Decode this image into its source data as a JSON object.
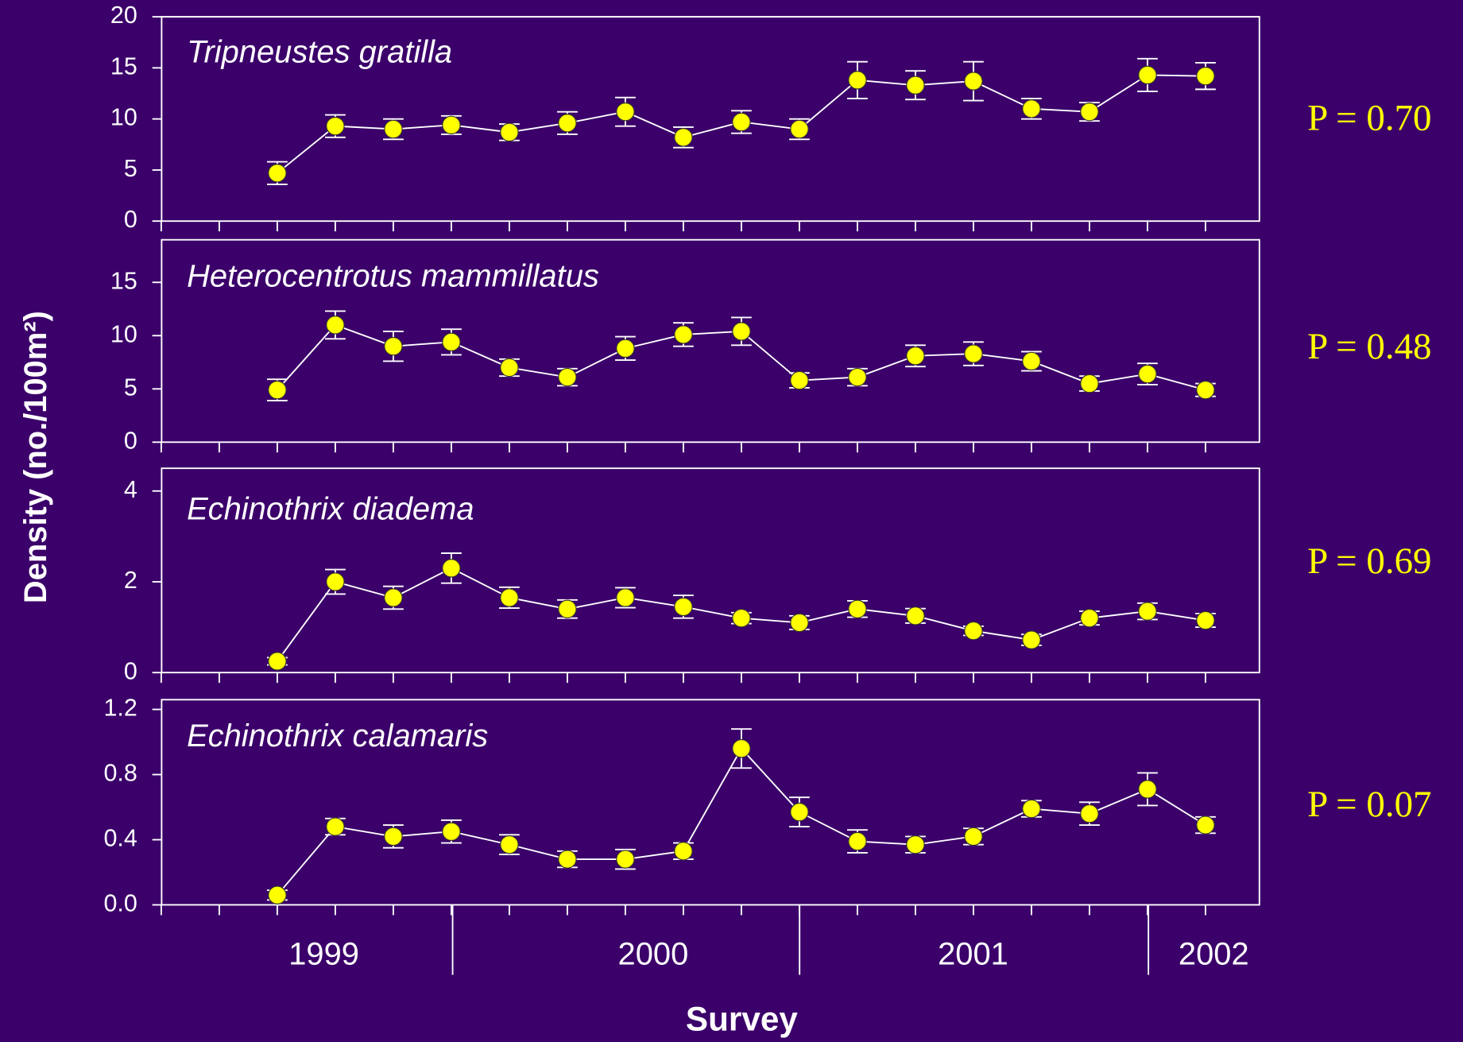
{
  "ylabel": "Density (no./100m²)",
  "xlabel": "Survey",
  "x_group_labels": [
    "1999",
    "2000",
    "2001",
    "2002"
  ],
  "chart_data": [
    {
      "type": "line",
      "title": "Tripneustes gratilla",
      "annotation": "P = 0.70",
      "color": "#ffff00",
      "values": [
        4.7,
        9.3,
        9.0,
        9.4,
        8.7,
        9.6,
        10.7,
        8.2,
        9.7,
        9.0,
        13.8,
        13.3,
        13.7,
        11.0,
        10.7,
        14.3,
        14.2
      ],
      "errors": [
        1.1,
        1.1,
        1.0,
        0.9,
        0.8,
        1.1,
        1.4,
        1.0,
        1.1,
        1.0,
        1.8,
        1.4,
        1.9,
        1.0,
        0.9,
        1.6,
        1.3
      ],
      "ylim": [
        0,
        20
      ],
      "yticks": [
        0,
        5,
        10,
        15,
        20
      ]
    },
    {
      "type": "line",
      "title": "Heterocentrotus mammillatus",
      "annotation": "P = 0.48",
      "color": "#ffff00",
      "values": [
        4.9,
        11.0,
        9.0,
        9.4,
        7.0,
        6.1,
        8.8,
        10.1,
        10.4,
        5.8,
        6.1,
        8.1,
        8.3,
        7.6,
        5.5,
        6.4,
        4.9
      ],
      "errors": [
        1.0,
        1.3,
        1.4,
        1.2,
        0.8,
        0.8,
        1.1,
        1.1,
        1.3,
        0.7,
        0.8,
        1.0,
        1.1,
        0.9,
        0.7,
        1.0,
        0.6
      ],
      "ylim": [
        0,
        19
      ],
      "yticks": [
        0,
        5,
        10,
        15
      ]
    },
    {
      "type": "line",
      "title": "Echinothrix diadema",
      "annotation": "P = 0.69",
      "color": "#ffff00",
      "values": [
        0.25,
        2.0,
        1.65,
        2.3,
        1.65,
        1.4,
        1.65,
        1.45,
        1.2,
        1.1,
        1.4,
        1.25,
        0.92,
        0.72,
        1.2,
        1.35,
        1.15
      ],
      "errors": [
        0.08,
        0.27,
        0.25,
        0.33,
        0.23,
        0.2,
        0.22,
        0.25,
        0.12,
        0.15,
        0.18,
        0.16,
        0.1,
        0.12,
        0.15,
        0.18,
        0.15
      ],
      "ylim": [
        0,
        4.5
      ],
      "yticks": [
        0,
        2,
        4
      ]
    },
    {
      "type": "line",
      "title": "Echinothrix calamaris",
      "annotation": "P = 0.07",
      "color": "#ffff00",
      "values": [
        0.06,
        0.48,
        0.42,
        0.45,
        0.37,
        0.28,
        0.28,
        0.33,
        0.96,
        0.57,
        0.39,
        0.37,
        0.42,
        0.59,
        0.56,
        0.71,
        0.49
      ],
      "errors": [
        0.03,
        0.05,
        0.07,
        0.07,
        0.06,
        0.05,
        0.06,
        0.05,
        0.12,
        0.09,
        0.07,
        0.05,
        0.05,
        0.05,
        0.07,
        0.1,
        0.05
      ],
      "ylim": [
        0,
        1.26
      ],
      "yticks": [
        {
          "value": 0,
          "label": "0.0"
        },
        {
          "value": 0.4,
          "label": "0.4"
        },
        {
          "value": 0.8,
          "label": "0.8"
        },
        {
          "value": 1.2,
          "label": "1.2"
        }
      ]
    }
  ]
}
